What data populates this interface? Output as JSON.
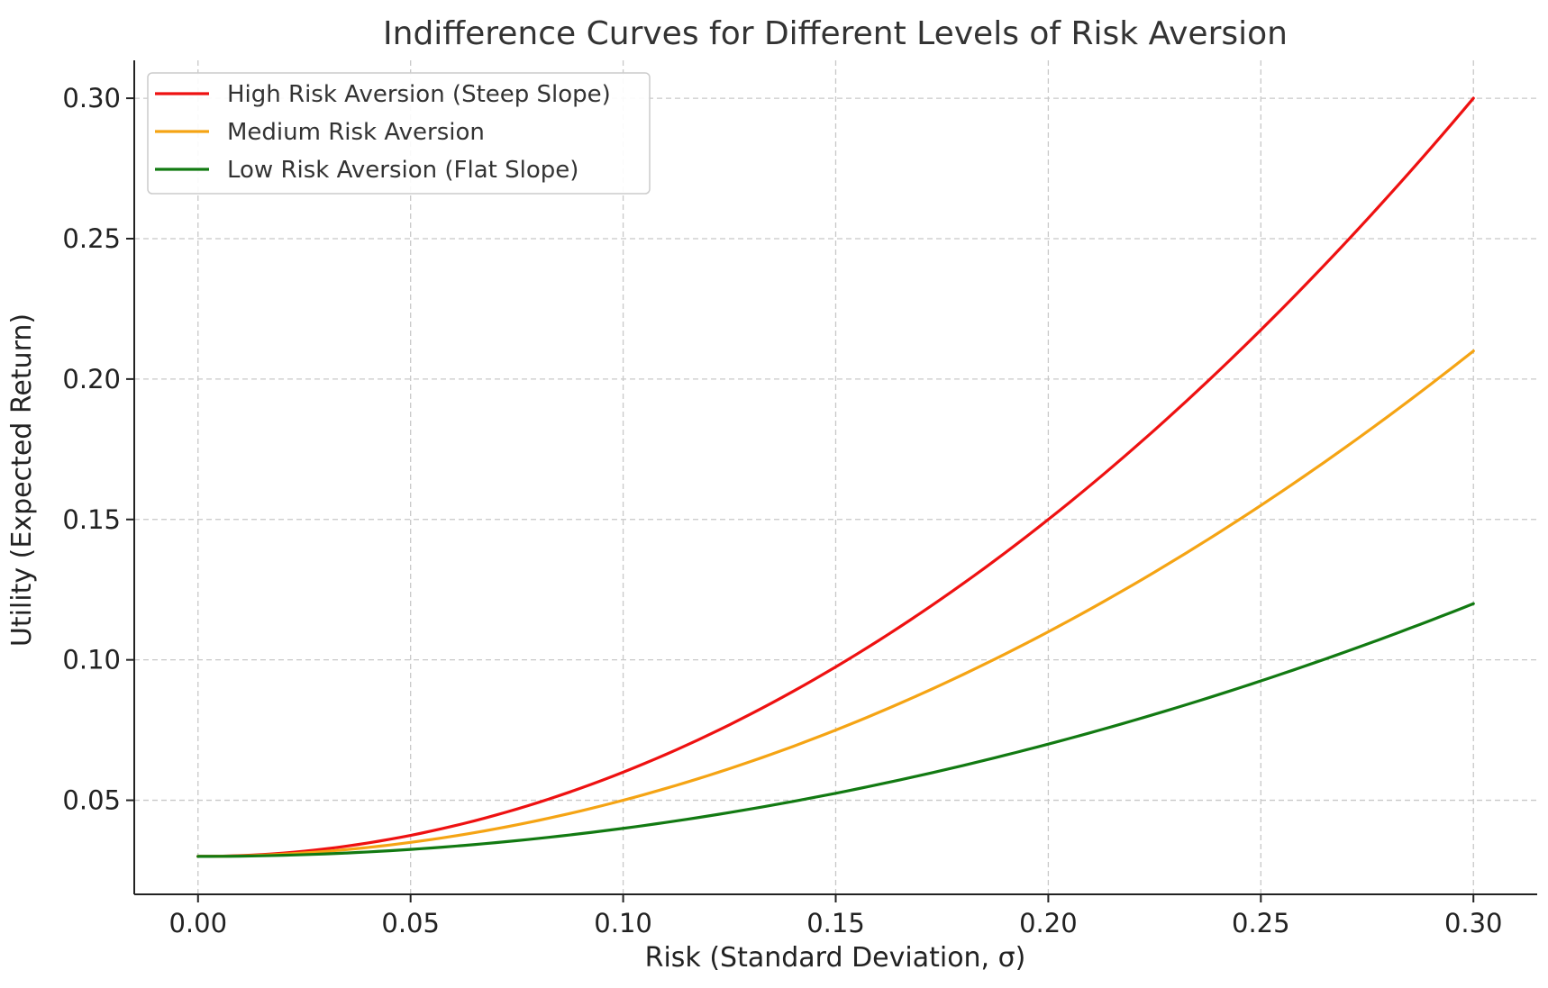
{
  "chart_data": {
    "type": "line",
    "title": "Indifference Curves for Different Levels of Risk Aversion",
    "xlabel": "Risk (Standard Deviation, σ)",
    "ylabel": "Utility (Expected Return)",
    "xlim": [
      -0.015,
      0.315
    ],
    "ylim": [
      0.0165,
      0.3135
    ],
    "xticks": [
      0.0,
      0.05,
      0.1,
      0.15,
      0.2,
      0.25,
      0.3
    ],
    "xtick_labels": [
      "0.00",
      "0.05",
      "0.10",
      "0.15",
      "0.20",
      "0.25",
      "0.30"
    ],
    "yticks": [
      0.05,
      0.1,
      0.15,
      0.2,
      0.25,
      0.3
    ],
    "ytick_labels": [
      "0.05",
      "0.10",
      "0.15",
      "0.20",
      "0.25",
      "0.30"
    ],
    "grid": true,
    "legend_position": "top-left",
    "x": [
      0.0,
      0.025,
      0.05,
      0.075,
      0.1,
      0.125,
      0.15,
      0.175,
      0.2,
      0.225,
      0.25,
      0.275,
      0.3
    ],
    "series": [
      {
        "name": "High Risk Aversion (Steep Slope)",
        "color": "#ee1111",
        "values": [
          0.03,
          0.031875,
          0.0375,
          0.046875,
          0.06,
          0.076875,
          0.0975,
          0.121875,
          0.15,
          0.181875,
          0.2175,
          0.256875,
          0.3
        ]
      },
      {
        "name": "Medium Risk Aversion",
        "color": "#f5a414",
        "values": [
          0.03,
          0.03125,
          0.035,
          0.04125,
          0.05,
          0.06125,
          0.075,
          0.09125,
          0.11,
          0.13125,
          0.155,
          0.18125,
          0.21
        ]
      },
      {
        "name": "Low Risk Aversion (Flat Slope)",
        "color": "#127a12",
        "values": [
          0.03,
          0.030625,
          0.0325,
          0.035625,
          0.04,
          0.045625,
          0.0525,
          0.060625,
          0.07,
          0.080625,
          0.0925,
          0.105625,
          0.12
        ]
      }
    ]
  }
}
